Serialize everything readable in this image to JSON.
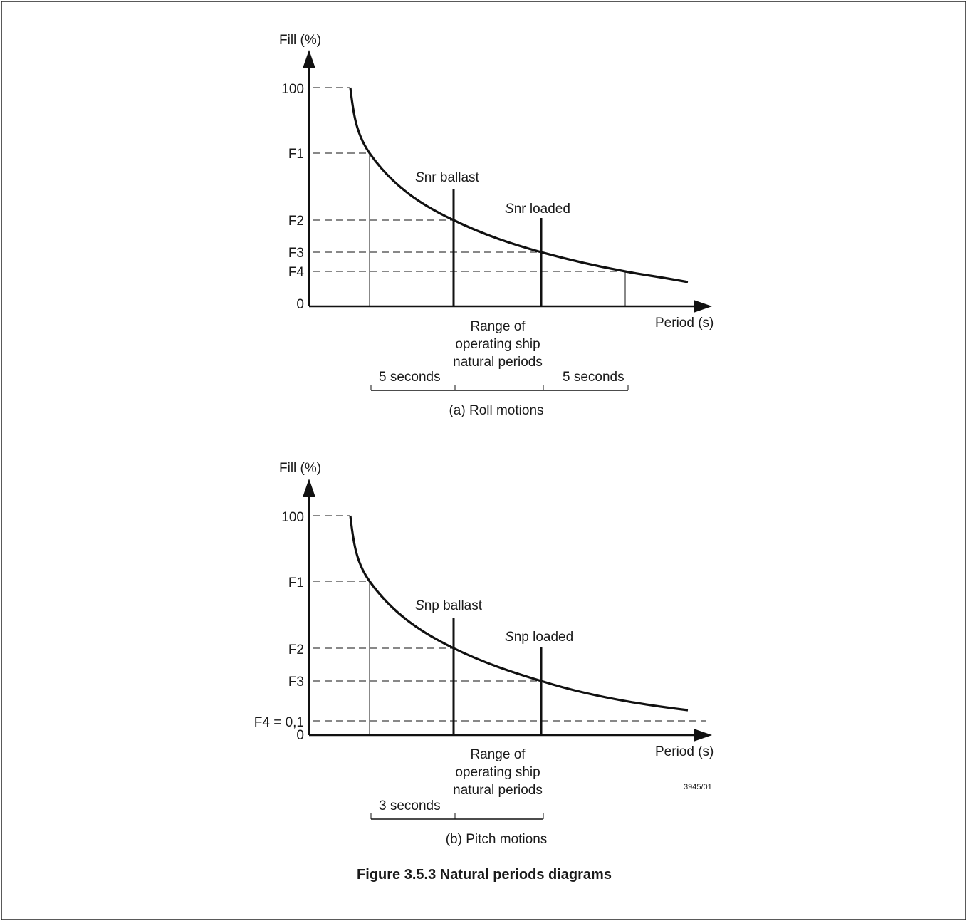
{
  "figure": {
    "caption": "Figure 3.5.3 Natural periods diagrams",
    "ref_number": "3945/01",
    "colors": {
      "ink": "#1a1a1a",
      "frame": "#222222",
      "background": "#ffffff"
    }
  },
  "roll": {
    "ylabel": "Fill (%)",
    "xlabel": "Period (s)",
    "y_ticks": [
      "100",
      "F1",
      "F2",
      "F3",
      "F4",
      "0"
    ],
    "marker_ballast": {
      "symbol": "S",
      "sub": "nr",
      "text": " ballast"
    },
    "marker_loaded": {
      "symbol": "S",
      "sub": "nr",
      "text": " loaded"
    },
    "range_lines": [
      "Range of",
      "operating ship",
      "natural periods"
    ],
    "span_left": "5 seconds",
    "span_right": "5 seconds",
    "subcaption": "(a) Roll motions"
  },
  "pitch": {
    "ylabel": "Fill (%)",
    "xlabel": "Period (s)",
    "y_ticks": [
      "100",
      "F1",
      "F2",
      "F3",
      "F4 = 0,1",
      "0"
    ],
    "marker_ballast": {
      "symbol": "S",
      "sub": "np",
      "text": " ballast"
    },
    "marker_loaded": {
      "symbol": "S",
      "sub": "np",
      "text": " loaded"
    },
    "range_lines": [
      "Range of",
      "operating ship",
      "natural periods"
    ],
    "span_left": "3 seconds",
    "subcaption": "(b) Pitch motions"
  }
}
